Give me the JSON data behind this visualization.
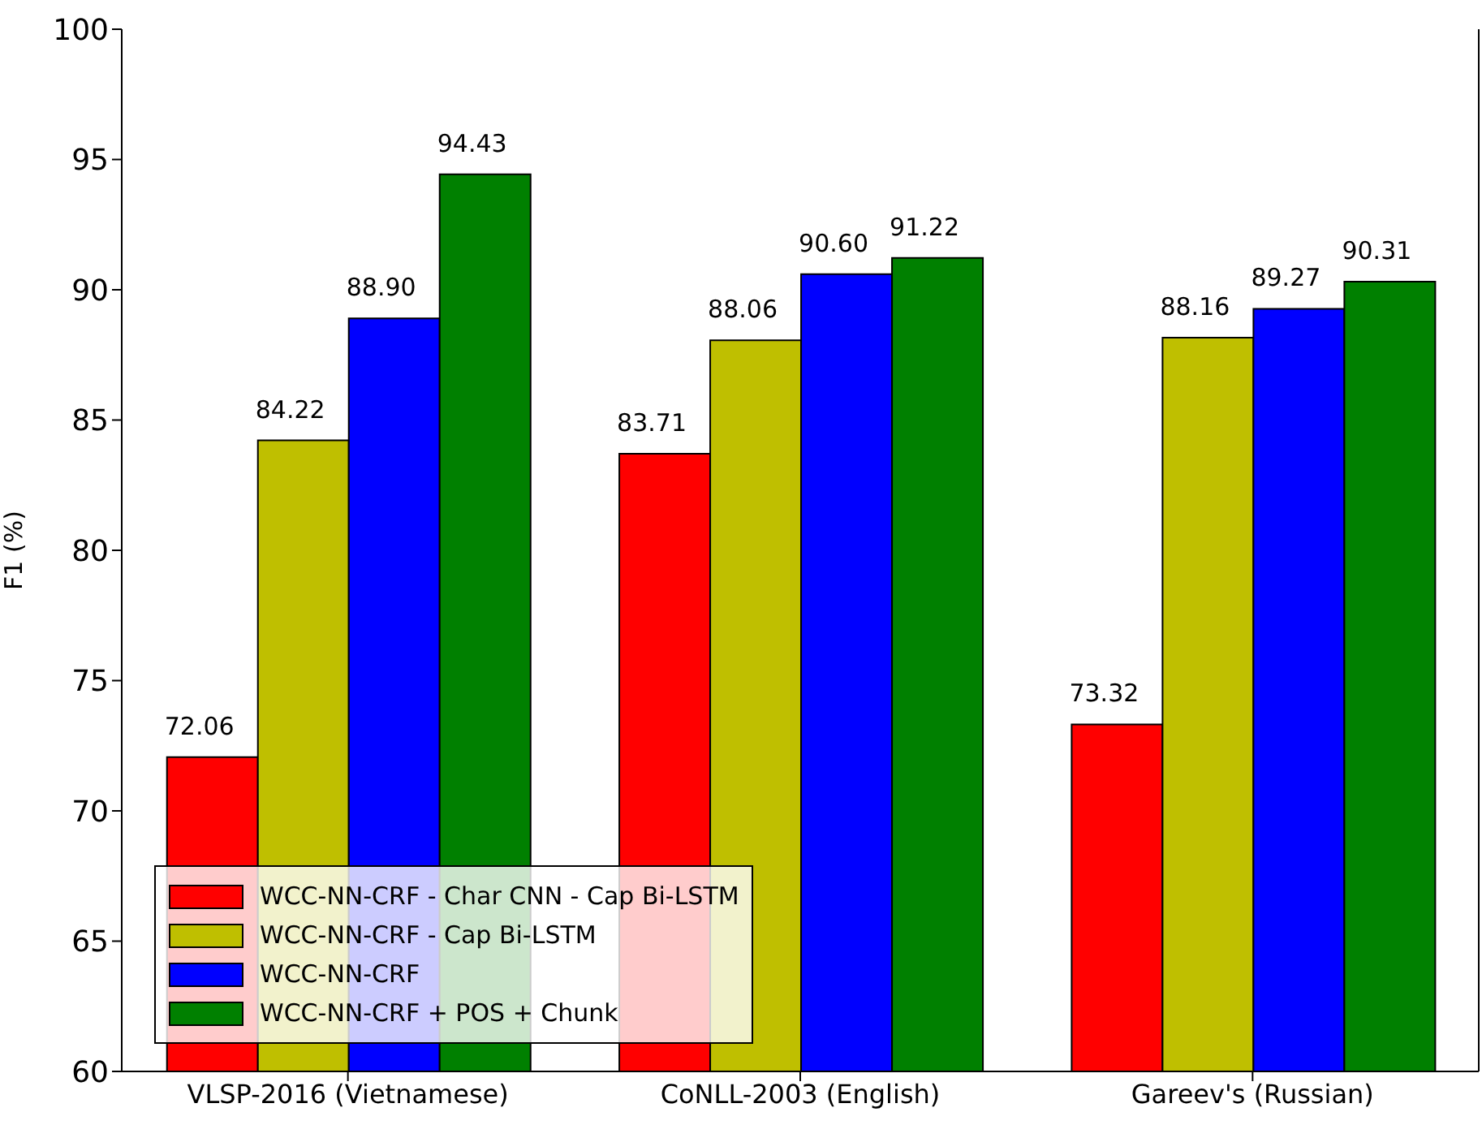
{
  "chart_data": {
    "type": "bar",
    "ylabel": "F1 (%)",
    "categories": [
      "VLSP-2016 (Vietnamese)",
      "CoNLL-2003 (English)",
      "Gareev's (Russian)"
    ],
    "series": [
      {
        "name": "WCC-NN-CRF - Char CNN - Cap Bi-LSTM",
        "color": "#ff0000",
        "values": [
          72.06,
          83.71,
          73.32
        ],
        "value_labels": [
          "72.06",
          "83.71",
          "73.32"
        ]
      },
      {
        "name": "WCC-NN-CRF - Cap Bi-LSTM",
        "color": "#bfbf00",
        "values": [
          84.22,
          88.06,
          88.16
        ],
        "value_labels": [
          "84.22",
          "88.06",
          "88.16"
        ]
      },
      {
        "name": "WCC-NN-CRF",
        "color": "#0000ff",
        "values": [
          88.9,
          90.6,
          89.27
        ],
        "value_labels": [
          "88.90",
          "90.60",
          "89.27"
        ]
      },
      {
        "name": "WCC-NN-CRF + POS + Chunk",
        "color": "#008000",
        "values": [
          94.43,
          91.22,
          90.31
        ],
        "value_labels": [
          "94.43",
          "91.22",
          "90.31"
        ]
      }
    ],
    "ylim": [
      60,
      100
    ],
    "yticks": [
      60,
      65,
      70,
      75,
      80,
      85,
      90,
      95,
      100
    ],
    "grid": false,
    "legend": "bottom left"
  }
}
